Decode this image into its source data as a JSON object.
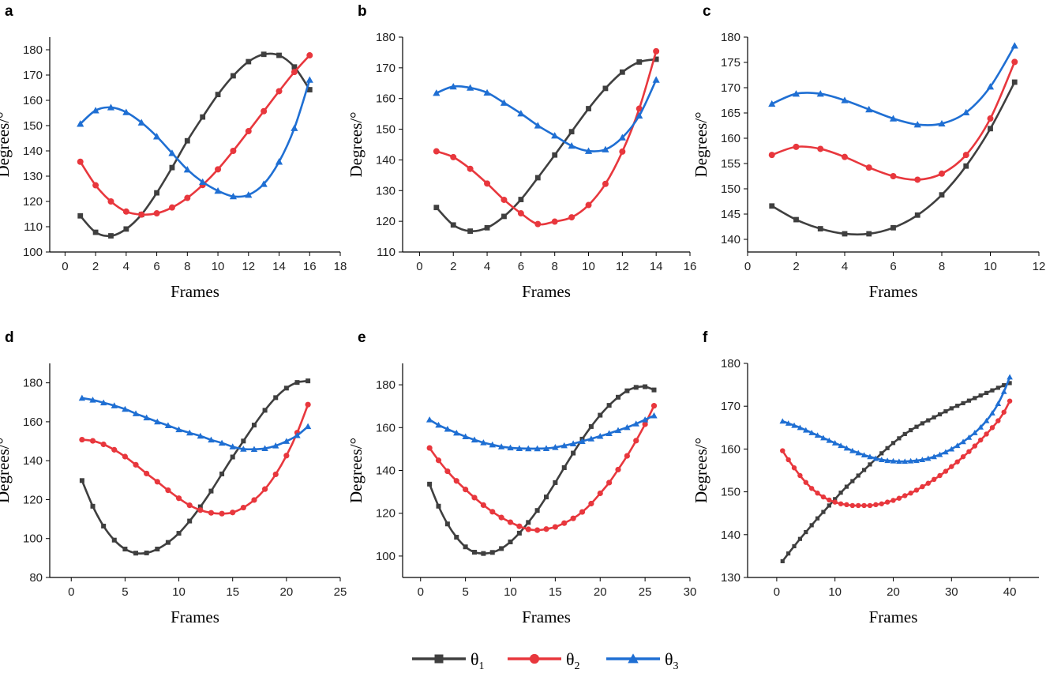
{
  "chart_data": [
    {
      "label": "a",
      "type": "line",
      "xlabel": "Frames",
      "ylabel": "Degrees/°",
      "xlim": [
        -1,
        18
      ],
      "xticks": [
        0,
        2,
        4,
        6,
        8,
        10,
        12,
        14,
        16,
        18
      ],
      "ylim": [
        100,
        185
      ],
      "yticks": [
        100,
        110,
        120,
        130,
        140,
        150,
        160,
        170,
        180
      ],
      "x": [
        1,
        2,
        3,
        4,
        5,
        6,
        7,
        8,
        9,
        10,
        11,
        12,
        13,
        14,
        15,
        16
      ],
      "series": [
        {
          "name": "θ1",
          "values": [
            114.3,
            107.8,
            106.4,
            109.1,
            114.8,
            123.4,
            133.4,
            144.0,
            153.4,
            162.3,
            169.7,
            175.3,
            178.2,
            177.8,
            173.2,
            164.2
          ]
        },
        {
          "name": "θ2",
          "values": [
            135.7,
            126.4,
            120.0,
            116.0,
            114.8,
            115.3,
            117.6,
            121.4,
            126.5,
            132.7,
            140.0,
            147.8,
            155.7,
            163.6,
            171.2,
            177.8
          ]
        },
        {
          "name": "θ3",
          "values": [
            150.7,
            156.0,
            157.2,
            155.3,
            151.2,
            145.7,
            139.1,
            132.6,
            127.7,
            124.2,
            122.0,
            122.6,
            126.9,
            135.7,
            149.0,
            168.1
          ]
        }
      ]
    },
    {
      "label": "b",
      "type": "line",
      "xlabel": "Frames",
      "ylabel": "Degrees/°",
      "xlim": [
        -1,
        16
      ],
      "xticks": [
        0,
        2,
        4,
        6,
        8,
        10,
        12,
        14,
        16
      ],
      "ylim": [
        110,
        180
      ],
      "yticks": [
        110,
        120,
        130,
        140,
        150,
        160,
        170,
        180
      ],
      "x": [
        1,
        2,
        3,
        4,
        5,
        6,
        7,
        8,
        9,
        10,
        11,
        12,
        13,
        14
      ],
      "series": [
        {
          "name": "θ1",
          "values": [
            124.5,
            118.8,
            116.8,
            117.9,
            121.6,
            127.1,
            134.2,
            141.6,
            149.2,
            156.7,
            163.3,
            168.6,
            171.9,
            172.8
          ]
        },
        {
          "name": "θ2",
          "values": [
            142.8,
            140.9,
            137.1,
            132.3,
            127.0,
            122.6,
            119.1,
            119.9,
            121.3,
            125.3,
            132.2,
            142.7,
            156.7,
            175.4
          ]
        },
        {
          "name": "θ3",
          "values": [
            161.8,
            163.9,
            163.5,
            161.9,
            158.6,
            155.1,
            151.2,
            147.9,
            144.6,
            142.9,
            143.4,
            147.3,
            154.4,
            166.1
          ]
        }
      ]
    },
    {
      "label": "c",
      "type": "line",
      "xlabel": "Frames",
      "ylabel": "Degrees/°",
      "xlim": [
        0,
        12
      ],
      "xticks": [
        0,
        2,
        4,
        6,
        8,
        10,
        12
      ],
      "ylim": [
        137.5,
        180
      ],
      "yticks": [
        140,
        145,
        150,
        155,
        160,
        165,
        170,
        175,
        180
      ],
      "x": [
        1,
        2,
        3,
        4,
        5,
        6,
        7,
        8,
        9,
        10,
        11
      ],
      "series": [
        {
          "name": "θ1",
          "values": [
            146.6,
            143.9,
            142.1,
            141.1,
            141.1,
            142.3,
            144.8,
            148.8,
            154.5,
            161.9,
            171.1
          ]
        },
        {
          "name": "θ2",
          "values": [
            156.7,
            158.3,
            157.9,
            156.3,
            154.2,
            152.5,
            151.8,
            153.0,
            156.7,
            163.9,
            175.1
          ]
        },
        {
          "name": "θ3",
          "values": [
            166.8,
            168.8,
            168.8,
            167.5,
            165.7,
            163.9,
            162.7,
            162.9,
            165.1,
            170.2,
            178.3
          ]
        }
      ]
    },
    {
      "label": "d",
      "type": "line",
      "xlabel": "Frames",
      "ylabel": "Degrees/°",
      "xlim": [
        -2,
        25
      ],
      "xticks": [
        0,
        5,
        10,
        15,
        20,
        25
      ],
      "ylim": [
        80,
        190
      ],
      "yticks": [
        80,
        100,
        120,
        140,
        160,
        180
      ],
      "x": [
        1,
        2,
        3,
        4,
        5,
        6,
        7,
        8,
        9,
        10,
        11,
        12,
        13,
        14,
        15,
        16,
        17,
        18,
        19,
        20,
        21,
        22
      ],
      "series": [
        {
          "name": "θ1",
          "values": [
            129.8,
            116.6,
            106.4,
            99.2,
            94.6,
            92.5,
            92.6,
            94.6,
            98.0,
            102.7,
            109.0,
            116.3,
            124.4,
            133.2,
            141.9,
            150.1,
            158.3,
            165.9,
            172.4,
            177.3,
            180.2,
            181.0
          ]
        },
        {
          "name": "θ2",
          "values": [
            150.8,
            150.2,
            148.4,
            145.6,
            142.1,
            137.9,
            133.4,
            129.2,
            124.8,
            120.7,
            117.1,
            114.6,
            113.2,
            112.8,
            113.4,
            115.9,
            119.8,
            125.4,
            133.0,
            142.6,
            154.4,
            168.8
          ]
        },
        {
          "name": "θ3",
          "values": [
            172.2,
            171.2,
            169.8,
            168.3,
            166.5,
            164.2,
            162.1,
            160.0,
            158.1,
            156.0,
            154.3,
            152.7,
            150.7,
            149.1,
            147.2,
            146.0,
            145.9,
            146.3,
            147.7,
            150.0,
            153.0,
            157.6
          ]
        }
      ]
    },
    {
      "label": "e",
      "type": "line",
      "xlabel": "Frames",
      "ylabel": "Degrees/°",
      "xlim": [
        -2,
        30
      ],
      "xticks": [
        0,
        5,
        10,
        15,
        20,
        25,
        30
      ],
      "ylim": [
        90,
        190
      ],
      "yticks": [
        100,
        120,
        140,
        160,
        180
      ],
      "x": [
        1,
        2,
        3,
        4,
        5,
        6,
        7,
        8,
        9,
        10,
        11,
        12,
        13,
        14,
        15,
        16,
        17,
        18,
        19,
        20,
        21,
        22,
        23,
        24,
        25,
        26
      ],
      "series": [
        {
          "name": "θ1",
          "values": [
            133.6,
            123.3,
            115.0,
            108.8,
            104.3,
            101.8,
            101.2,
            101.7,
            103.5,
            106.6,
            110.7,
            115.7,
            121.3,
            127.6,
            134.3,
            141.3,
            148.1,
            154.6,
            160.5,
            165.8,
            170.4,
            174.2,
            177.2,
            178.8,
            179.1,
            177.6
          ]
        },
        {
          "name": "θ2",
          "values": [
            150.5,
            144.7,
            139.6,
            135.1,
            131.1,
            127.3,
            123.8,
            120.7,
            118.0,
            115.8,
            113.9,
            112.5,
            112.1,
            112.6,
            113.6,
            115.4,
            117.6,
            120.6,
            124.5,
            129.3,
            134.3,
            140.4,
            146.8,
            153.9,
            161.6,
            170.2
          ]
        },
        {
          "name": "θ3",
          "values": [
            163.7,
            161.2,
            159.3,
            157.5,
            155.8,
            154.3,
            153.0,
            152.0,
            151.1,
            150.6,
            150.3,
            150.2,
            150.2,
            150.3,
            150.8,
            151.6,
            152.5,
            153.6,
            154.8,
            156.0,
            157.3,
            158.7,
            160.1,
            161.8,
            163.7,
            165.6
          ]
        }
      ]
    },
    {
      "label": "f",
      "type": "line",
      "xlabel": "Frames",
      "ylabel": "Degrees/°",
      "xlim": [
        -5,
        45
      ],
      "xticks": [
        0,
        10,
        20,
        30,
        40
      ],
      "ylim": [
        130,
        180
      ],
      "yticks": [
        130,
        140,
        150,
        160,
        170,
        180
      ],
      "x": [
        1,
        2,
        3,
        4,
        5,
        6,
        7,
        8,
        9,
        10,
        11,
        12,
        13,
        14,
        15,
        16,
        17,
        18,
        19,
        20,
        21,
        22,
        23,
        24,
        25,
        26,
        27,
        28,
        29,
        30,
        31,
        32,
        33,
        34,
        35,
        36,
        37,
        38,
        39,
        40
      ],
      "series": [
        {
          "name": "θ1",
          "values": [
            133.8,
            135.6,
            137.3,
            139.0,
            140.6,
            142.2,
            143.8,
            145.3,
            146.8,
            148.3,
            149.8,
            151.2,
            152.5,
            153.8,
            155.1,
            156.4,
            157.7,
            159.0,
            160.2,
            161.4,
            162.5,
            163.5,
            164.4,
            165.2,
            166.0,
            166.7,
            167.4,
            168.1,
            168.8,
            169.5,
            170.1,
            170.7,
            171.3,
            171.9,
            172.5,
            173.1,
            173.7,
            174.3,
            174.9,
            175.4
          ]
        },
        {
          "name": "θ2",
          "values": [
            159.6,
            157.5,
            155.6,
            153.8,
            152.2,
            150.8,
            149.7,
            148.8,
            148.1,
            147.6,
            147.2,
            147.0,
            146.8,
            146.8,
            146.8,
            146.8,
            147.0,
            147.2,
            147.6,
            148.0,
            148.5,
            149.1,
            149.7,
            150.4,
            151.2,
            152.0,
            152.9,
            153.8,
            154.8,
            155.9,
            157.0,
            158.2,
            159.4,
            160.7,
            162.1,
            163.5,
            165.0,
            166.6,
            168.6,
            171.2
          ]
        },
        {
          "name": "θ3",
          "values": [
            166.5,
            166.0,
            165.5,
            165.0,
            164.4,
            163.8,
            163.2,
            162.6,
            162.0,
            161.4,
            160.8,
            160.2,
            159.6,
            159.1,
            158.6,
            158.2,
            157.8,
            157.5,
            157.3,
            157.2,
            157.1,
            157.1,
            157.2,
            157.3,
            157.5,
            157.8,
            158.2,
            158.7,
            159.3,
            160.0,
            160.8,
            161.7,
            162.7,
            163.8,
            165.1,
            166.6,
            168.4,
            170.6,
            173.4,
            176.8
          ]
        }
      ]
    }
  ],
  "legend": [
    {
      "name": "θ",
      "sub": "1",
      "color": "#3f3f3f",
      "marker": "square"
    },
    {
      "name": "θ",
      "sub": "2",
      "color": "#e8373d",
      "marker": "circle"
    },
    {
      "name": "θ",
      "sub": "3",
      "color": "#1f6fd3",
      "marker": "triangle"
    }
  ],
  "colors": {
    "theta1": "#3f3f3f",
    "theta2": "#e8373d",
    "theta3": "#1f6fd3"
  }
}
